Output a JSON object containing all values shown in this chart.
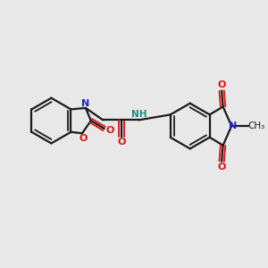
{
  "background_color": "#e8e8e8",
  "bond_color": "#1a1a1a",
  "nitrogen_color": "#2222cc",
  "oxygen_color": "#dd1111",
  "nh_color": "#228888",
  "figsize": [
    3.0,
    3.0
  ],
  "dpi": 100,
  "xlim": [
    0,
    10
  ],
  "ylim": [
    0,
    10
  ]
}
